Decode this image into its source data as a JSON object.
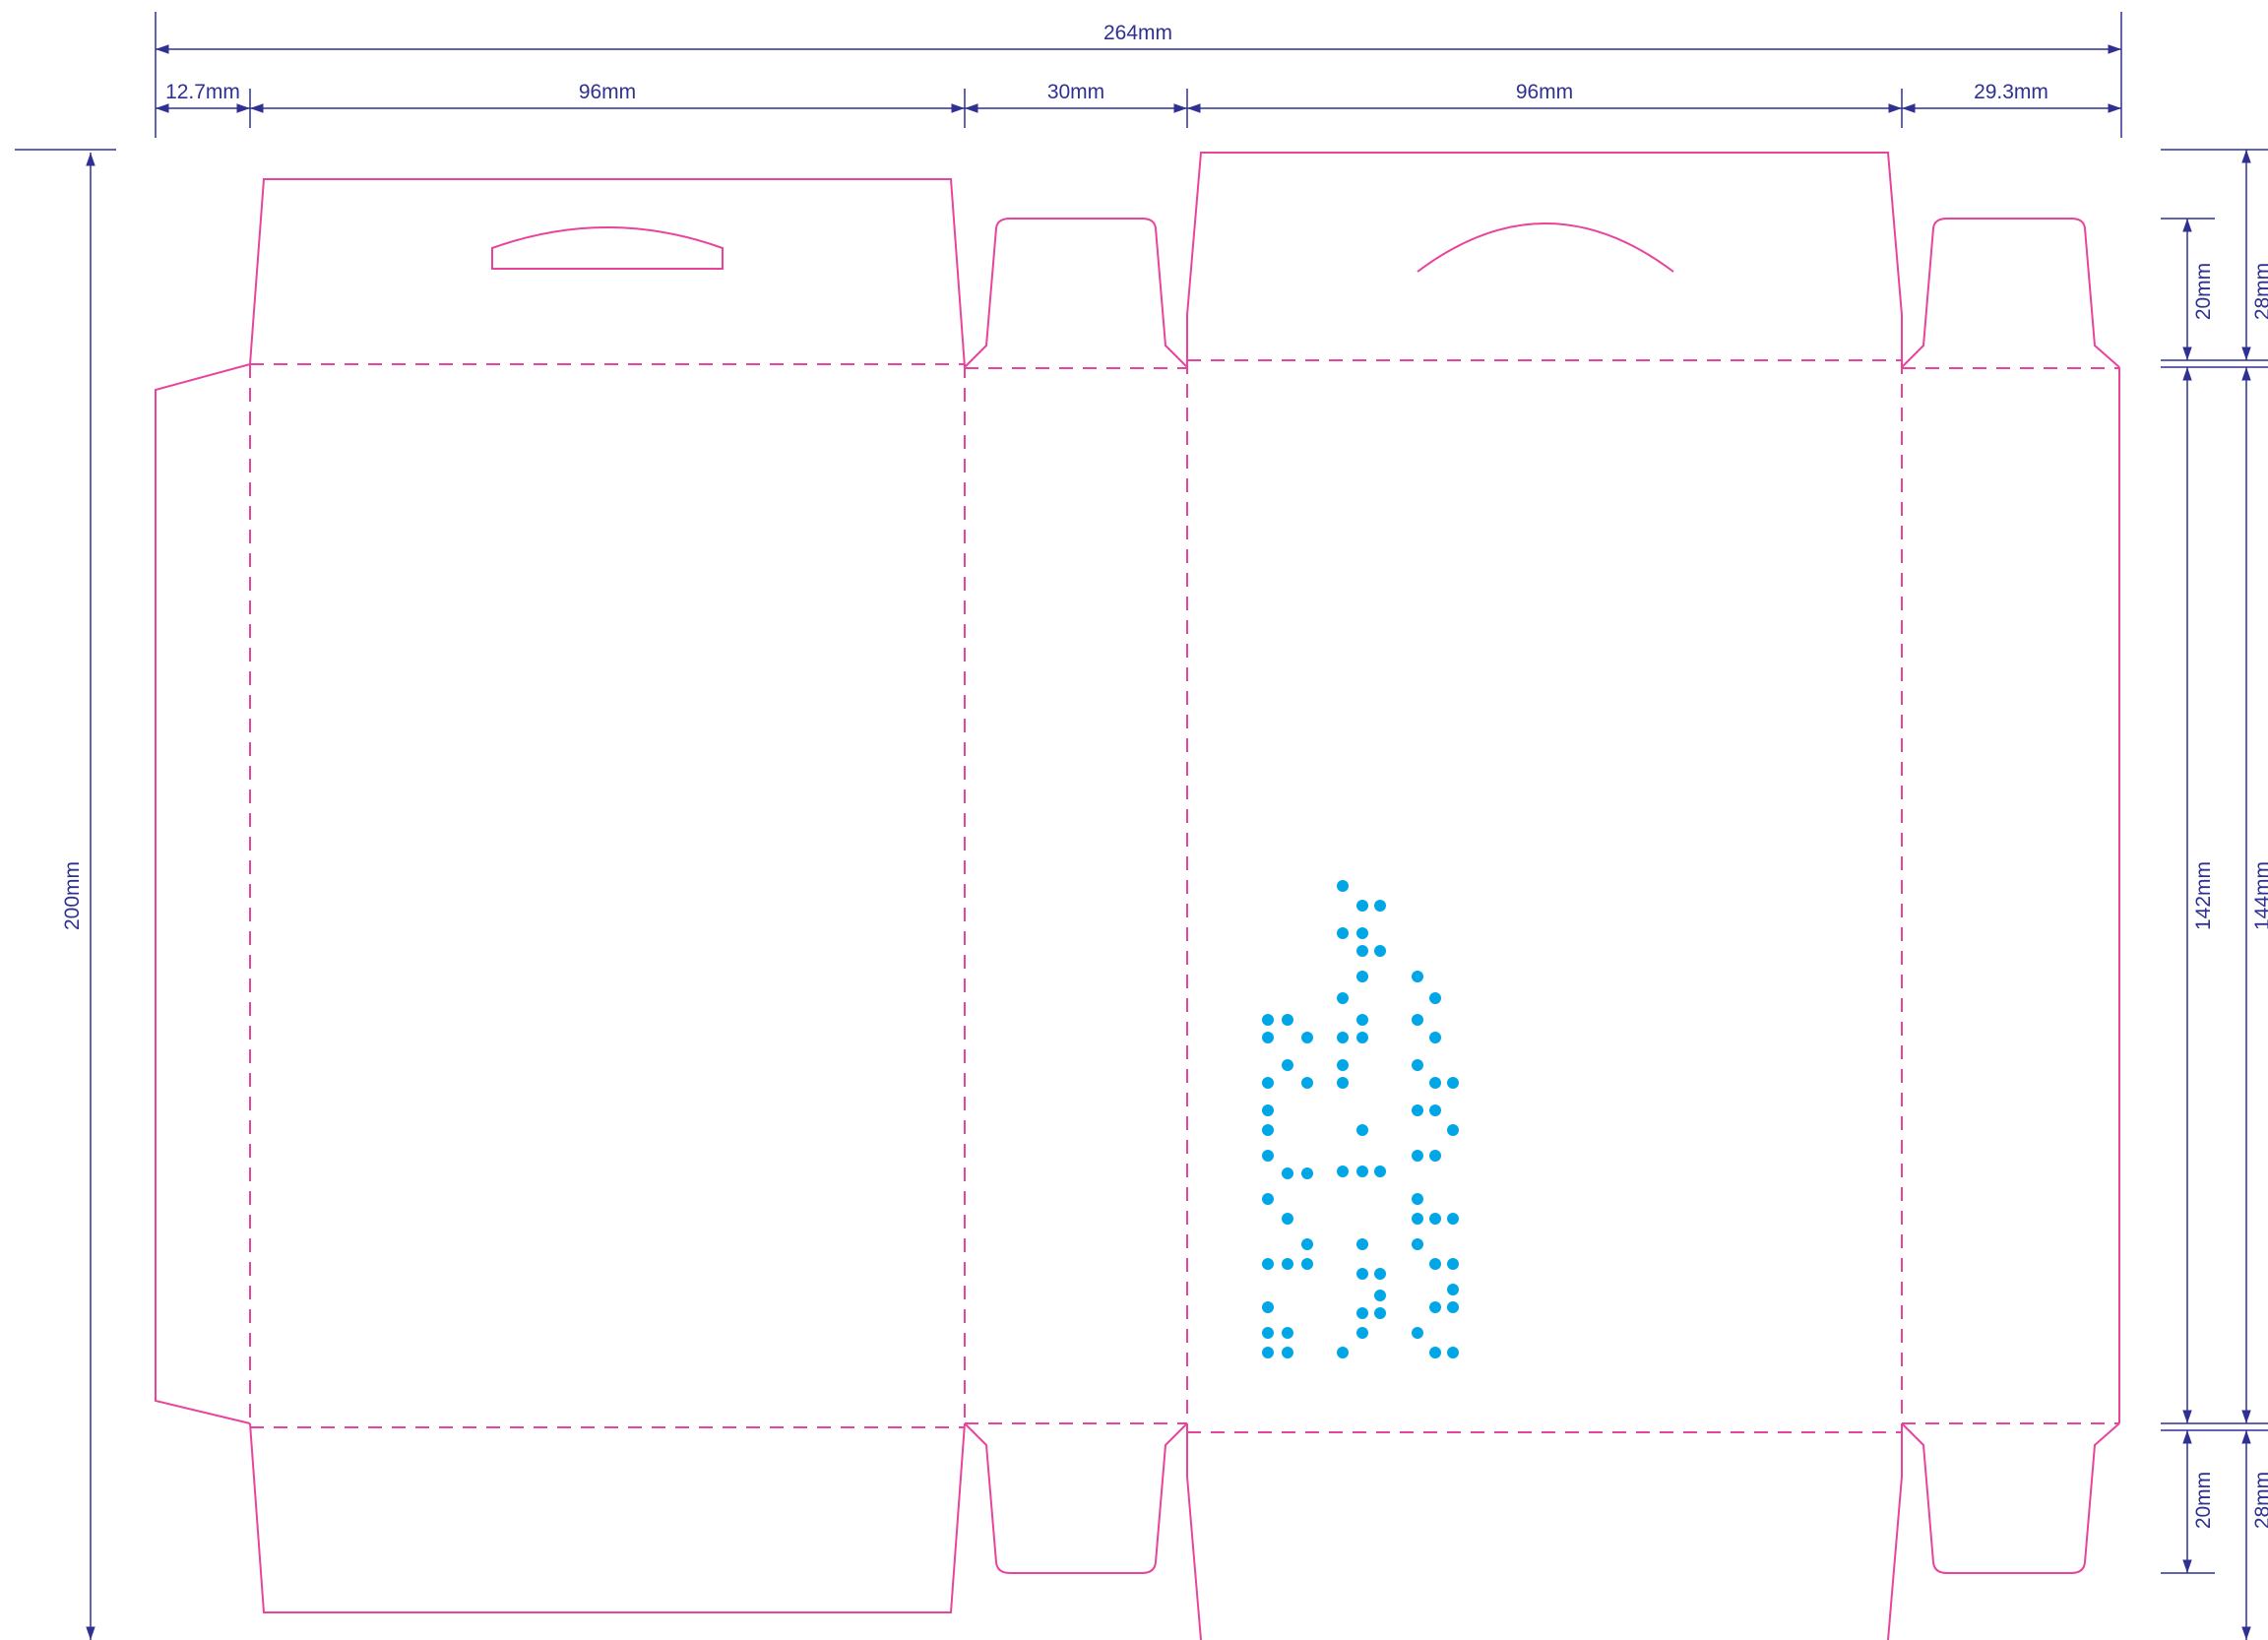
{
  "dimensions": {
    "overall_width": "264mm",
    "glue_flap": "12.7mm",
    "panel_1": "96mm",
    "side_1": "30mm",
    "panel_2": "96mm",
    "side_2": "29.3mm",
    "overall_height": "200mm",
    "top_flap_inner": "20mm",
    "top_flap_outer": "28mm",
    "body_inner": "142mm",
    "body_outer": "144mm",
    "bottom_flap_inner": "20mm",
    "bottom_flap_outer": "28mm"
  },
  "colors": {
    "cut_line": "#e8449c",
    "fold_line": "#e8449c",
    "dimension": "#2e3192",
    "braille": "#00a6e6",
    "background": "#ffffff"
  },
  "braille_icon": "braille-dots"
}
